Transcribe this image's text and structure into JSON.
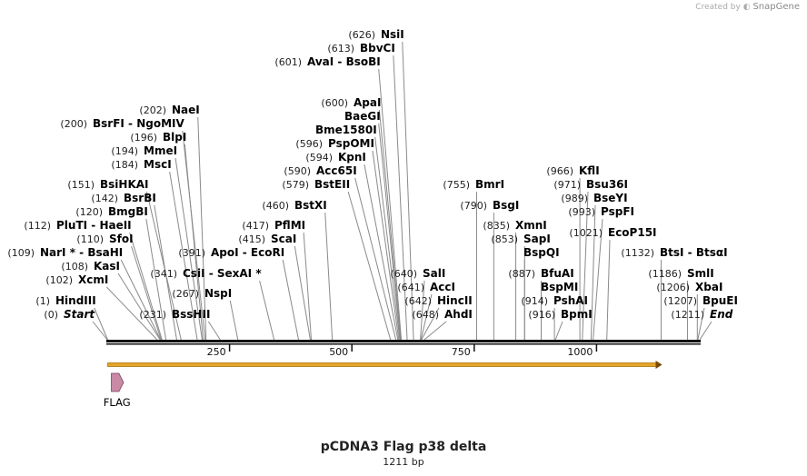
{
  "branding": {
    "prefix": "Created by",
    "name": "SnapGene"
  },
  "plasmid": {
    "name": "pCDNA3 Flag p38 delta",
    "size_label": "1211 bp",
    "length": 1211
  },
  "ruler": {
    "ticks": [
      250,
      500,
      750,
      1000
    ]
  },
  "features": [
    {
      "name": "FLAG",
      "start": 1,
      "end": 24,
      "color": "#c98aa6"
    },
    {
      "name": "",
      "start": 1,
      "end": 1134,
      "color": "#e5a427"
    }
  ],
  "enzymes": [
    {
      "pos": "(0)",
      "name": "Start",
      "at": 0,
      "italic": true
    },
    {
      "pos": "(1)",
      "name": "HindIII",
      "at": 1
    },
    {
      "pos": "(102)",
      "name": "XcmI",
      "at": 102
    },
    {
      "pos": "(108)",
      "name": "KasI",
      "at": 108
    },
    {
      "pos": "(109)",
      "name": "NarI * - BsaHI",
      "at": 109
    },
    {
      "pos": "(110)",
      "name": "SfoI",
      "at": 110
    },
    {
      "pos": "(112)",
      "name": "PluTI - HaeII",
      "at": 112
    },
    {
      "pos": "(120)",
      "name": "BmgBI",
      "at": 120
    },
    {
      "pos": "(142)",
      "name": "BsrBI",
      "at": 142
    },
    {
      "pos": "(151)",
      "name": "BsiHKAI",
      "at": 151
    },
    {
      "pos": "(184)",
      "name": "MscI",
      "at": 184
    },
    {
      "pos": "(194)",
      "name": "MmeI",
      "at": 194
    },
    {
      "pos": "(196)",
      "name": "BlpI",
      "at": 196
    },
    {
      "pos": "(200)",
      "name": "BsrFI - NgoMIV",
      "at": 200
    },
    {
      "pos": "(202)",
      "name": "NaeI",
      "at": 202
    },
    {
      "pos": "(231)",
      "name": "BssHII",
      "at": 231
    },
    {
      "pos": "(267)",
      "name": "NspI",
      "at": 267
    },
    {
      "pos": "(341)",
      "name": "CsiI - SexAI *",
      "at": 341
    },
    {
      "pos": "(391)",
      "name": "ApoI - EcoRI",
      "at": 391
    },
    {
      "pos": "(415)",
      "name": "ScaI",
      "at": 415
    },
    {
      "pos": "(417)",
      "name": "PflMI",
      "at": 417
    },
    {
      "pos": "(460)",
      "name": "BstXI",
      "at": 460
    },
    {
      "pos": "(579)",
      "name": "BstEII",
      "at": 579
    },
    {
      "pos": "(590)",
      "name": "Acc65I",
      "at": 590
    },
    {
      "pos": "(594)",
      "name": "KpnI",
      "at": 594
    },
    {
      "pos": "(596)",
      "name": "PspOMI",
      "at": 596
    },
    {
      "pos": "",
      "name": "Bme1580I",
      "at": 598
    },
    {
      "pos": "",
      "name": "BaeGI",
      "at": 599
    },
    {
      "pos": "(600)",
      "name": "ApaI",
      "at": 600
    },
    {
      "pos": "(601)",
      "name": "AvaI - BsoBI",
      "at": 601
    },
    {
      "pos": "(613)",
      "name": "BbvCI",
      "at": 613
    },
    {
      "pos": "(626)",
      "name": "NsiI",
      "at": 626
    },
    {
      "pos": "(640)",
      "name": "SalI",
      "at": 640
    },
    {
      "pos": "(641)",
      "name": "AccI",
      "at": 641
    },
    {
      "pos": "(642)",
      "name": "HincII",
      "at": 642
    },
    {
      "pos": "(648)",
      "name": "AhdI",
      "at": 648
    },
    {
      "pos": "(755)",
      "name": "BmrI",
      "at": 755
    },
    {
      "pos": "(790)",
      "name": "BsgI",
      "at": 790
    },
    {
      "pos": "(835)",
      "name": "XmnI",
      "at": 835
    },
    {
      "pos": "(853)",
      "name": "SapI",
      "at": 853
    },
    {
      "pos": "",
      "name": "BspQI",
      "at": 853
    },
    {
      "pos": "(887)",
      "name": "BfuAI",
      "at": 887
    },
    {
      "pos": "",
      "name": "BspMI",
      "at": 887
    },
    {
      "pos": "(914)",
      "name": "PshAI",
      "at": 914
    },
    {
      "pos": "(916)",
      "name": "BpmI",
      "at": 916
    },
    {
      "pos": "(966)",
      "name": "KflI",
      "at": 966
    },
    {
      "pos": "(971)",
      "name": "Bsu36I",
      "at": 971
    },
    {
      "pos": "(989)",
      "name": "BseYI",
      "at": 989
    },
    {
      "pos": "(993)",
      "name": "PspFI",
      "at": 993
    },
    {
      "pos": "(1021)",
      "name": "EcoP15I",
      "at": 1021
    },
    {
      "pos": "(1132)",
      "name": "BtsI - BtsαI",
      "at": 1132
    },
    {
      "pos": "(1186)",
      "name": "SmlI",
      "at": 1186
    },
    {
      "pos": "(1206)",
      "name": "XbaI",
      "at": 1206
    },
    {
      "pos": "(1207)",
      "name": "BpuEI",
      "at": 1207
    },
    {
      "pos": "(1211)",
      "name": "End",
      "at": 1211,
      "italic": true
    }
  ]
}
